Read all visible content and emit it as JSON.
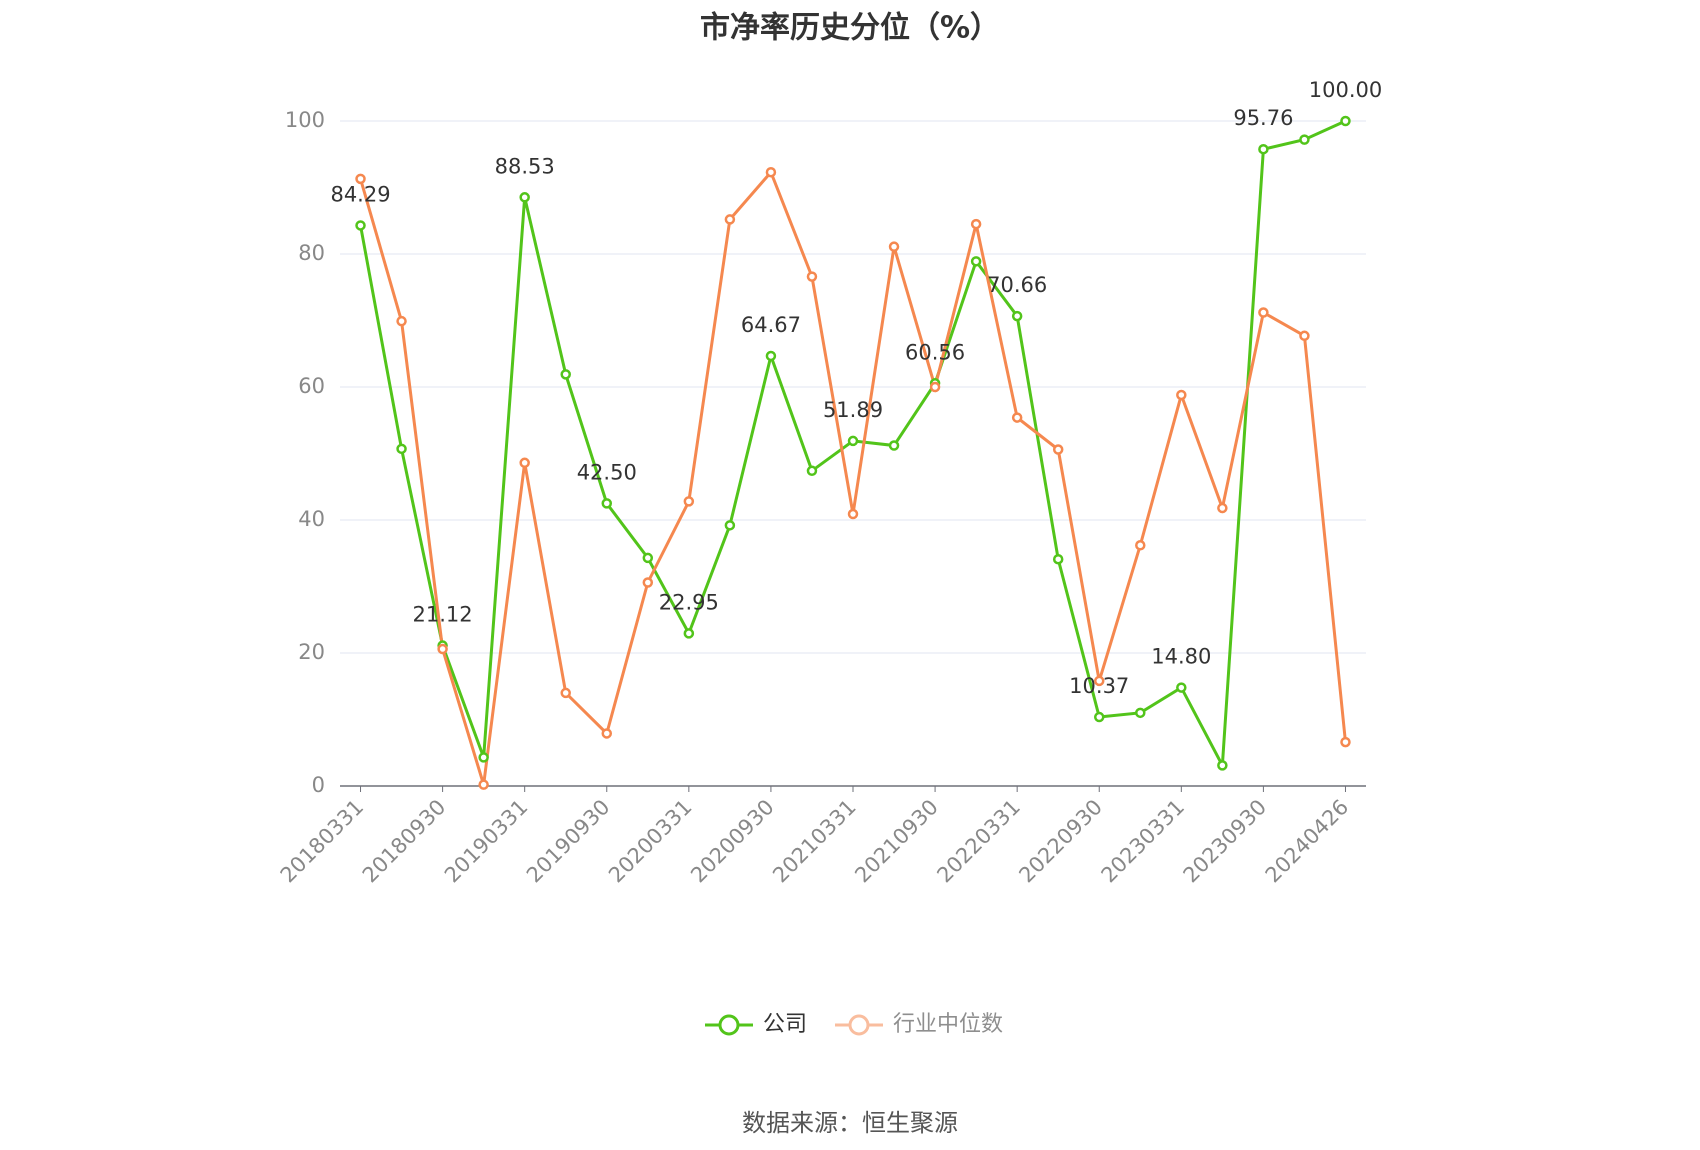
{
  "chart_data": {
    "type": "line",
    "title": "市净率历史分位（%）",
    "categories": [
      "20180331",
      null,
      "20180930",
      null,
      "20190331",
      null,
      "20190930",
      null,
      "20200331",
      null,
      "20200930",
      null,
      "20210331",
      null,
      "20210930",
      null,
      "20220331",
      null,
      "20220930",
      null,
      "20230331",
      null,
      "20230930",
      null,
      "20240426"
    ],
    "series": [
      {
        "name": "公司",
        "color": "#52c41a",
        "values": [
          84.29,
          50.7,
          21.12,
          4.3,
          88.53,
          61.9,
          42.5,
          34.3,
          22.95,
          39.2,
          64.67,
          47.4,
          51.89,
          51.2,
          60.56,
          78.9,
          70.66,
          34.1,
          10.37,
          11.0,
          14.8,
          3.1,
          95.76,
          97.2,
          100
        ],
        "value_labels": [
          "84.29",
          null,
          "21.12",
          null,
          "88.53",
          null,
          "42.50",
          null,
          "22.95",
          null,
          "64.67",
          null,
          "51.89",
          null,
          "60.56",
          null,
          "70.66",
          null,
          "10.37",
          null,
          "14.80",
          null,
          "95.76",
          null,
          "100.00"
        ]
      },
      {
        "name": "行业中位数",
        "color": "#f5884f",
        "values": [
          91.3,
          69.9,
          20.6,
          0.2,
          48.6,
          14.0,
          7.9,
          30.6,
          42.8,
          85.2,
          92.3,
          76.6,
          40.9,
          81.1,
          60.0,
          84.5,
          55.4,
          50.6,
          15.8,
          36.2,
          58.8,
          41.8,
          71.2,
          67.7,
          6.6
        ]
      }
    ],
    "ylim": [
      0,
      100
    ],
    "yticks": [
      0,
      20,
      40,
      60,
      80,
      100
    ],
    "grid": true,
    "source": "数据来源：恒生聚源"
  }
}
